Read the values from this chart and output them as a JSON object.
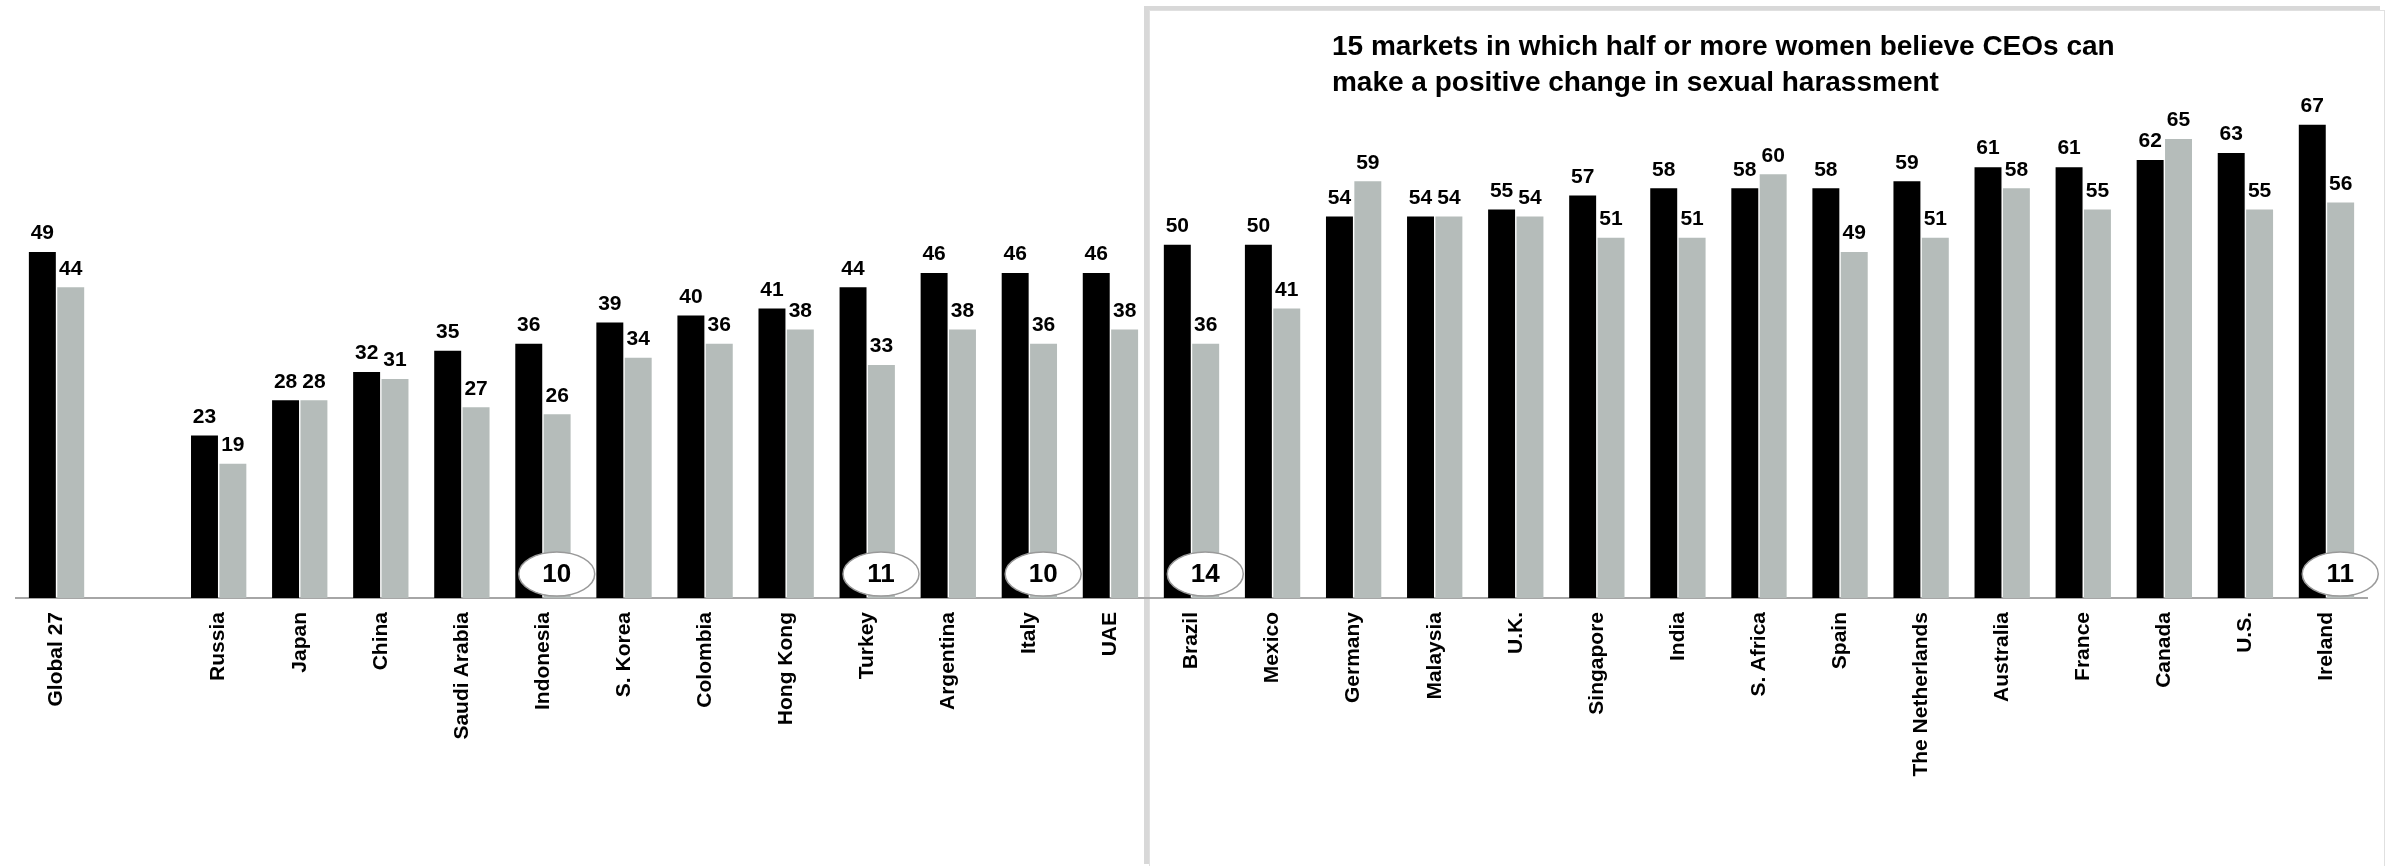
{
  "chart_data": {
    "type": "bar",
    "categories": [
      "Global 27",
      null,
      "Russia",
      "Japan",
      "China",
      "Saudi Arabia",
      "Indonesia",
      "S. Korea",
      "Colombia",
      "Hong Kong",
      "Turkey",
      "Argentina",
      "Italy",
      "UAE",
      "Brazil",
      "Mexico",
      "Germany",
      "Malaysia",
      "U.K.",
      "Singapore",
      "India",
      "S. Africa",
      "Spain",
      "The Netherlands",
      "Australia",
      "France",
      "Canada",
      "U.S.",
      "Ireland"
    ],
    "series": [
      {
        "color": "#000000",
        "values": [
          49,
          null,
          23,
          28,
          32,
          35,
          36,
          39,
          40,
          41,
          44,
          46,
          46,
          46,
          50,
          50,
          54,
          54,
          55,
          57,
          58,
          58,
          58,
          59,
          61,
          61,
          62,
          63,
          67
        ]
      },
      {
        "color": "#b5bcba",
        "values": [
          44,
          null,
          19,
          28,
          31,
          27,
          26,
          34,
          36,
          38,
          33,
          38,
          36,
          38,
          36,
          41,
          59,
          54,
          54,
          51,
          51,
          60,
          49,
          51,
          58,
          55,
          65,
          55,
          56
        ]
      }
    ],
    "data_labels": true,
    "legend": false,
    "grid": false,
    "bands": [
      {
        "axis": "x",
        "from": "Brazil",
        "to": "Ireland",
        "color": "#ffffff",
        "label": "15 markets in which half or more women believe CEOs can make a positive change in sexual harassment"
      }
    ],
    "annotations": [
      {
        "text": "10",
        "x": "Indonesia"
      },
      {
        "text": "11",
        "x": "Turkey"
      },
      {
        "text": "10",
        "x": "Italy"
      },
      {
        "text": "14",
        "x": "Brazil"
      },
      {
        "text": "11",
        "x": "Ireland"
      }
    ]
  }
}
